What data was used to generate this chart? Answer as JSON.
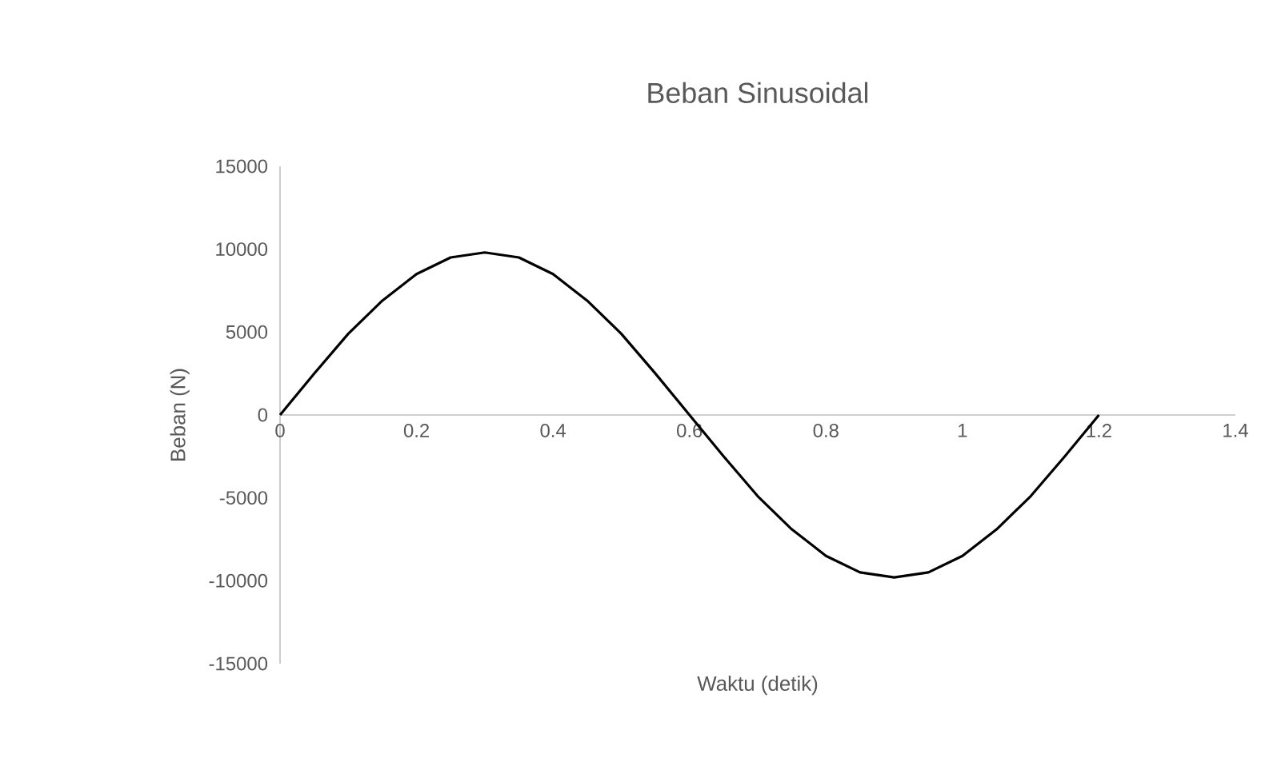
{
  "chart_data": {
    "type": "line",
    "title": "Beban Sinusoidal",
    "xlabel": "Waktu (detik)",
    "ylabel": "Beban (N)",
    "x": [
      0,
      0.05,
      0.1,
      0.15,
      0.2,
      0.25,
      0.3,
      0.35,
      0.4,
      0.45,
      0.5,
      0.55,
      0.6,
      0.65,
      0.7,
      0.75,
      0.8,
      0.85,
      0.9,
      0.95,
      1.0,
      1.05,
      1.1,
      1.15,
      1.2
    ],
    "values": [
      0,
      2500,
      4900,
      6900,
      8500,
      9500,
      9800,
      9500,
      8500,
      6900,
      4900,
      2500,
      0,
      -2500,
      -4900,
      -6900,
      -8500,
      -9500,
      -9800,
      -9500,
      -8500,
      -6900,
      -4900,
      -2500,
      0
    ],
    "color": "#000000",
    "xlim": [
      0,
      1.4
    ],
    "ylim": [
      -15000,
      15000
    ],
    "xticks": [
      0,
      0.2,
      0.4,
      0.6,
      0.8,
      1,
      1.2,
      1.4
    ],
    "yticks": [
      -15000,
      -10000,
      -5000,
      0,
      5000,
      10000,
      15000
    ]
  }
}
